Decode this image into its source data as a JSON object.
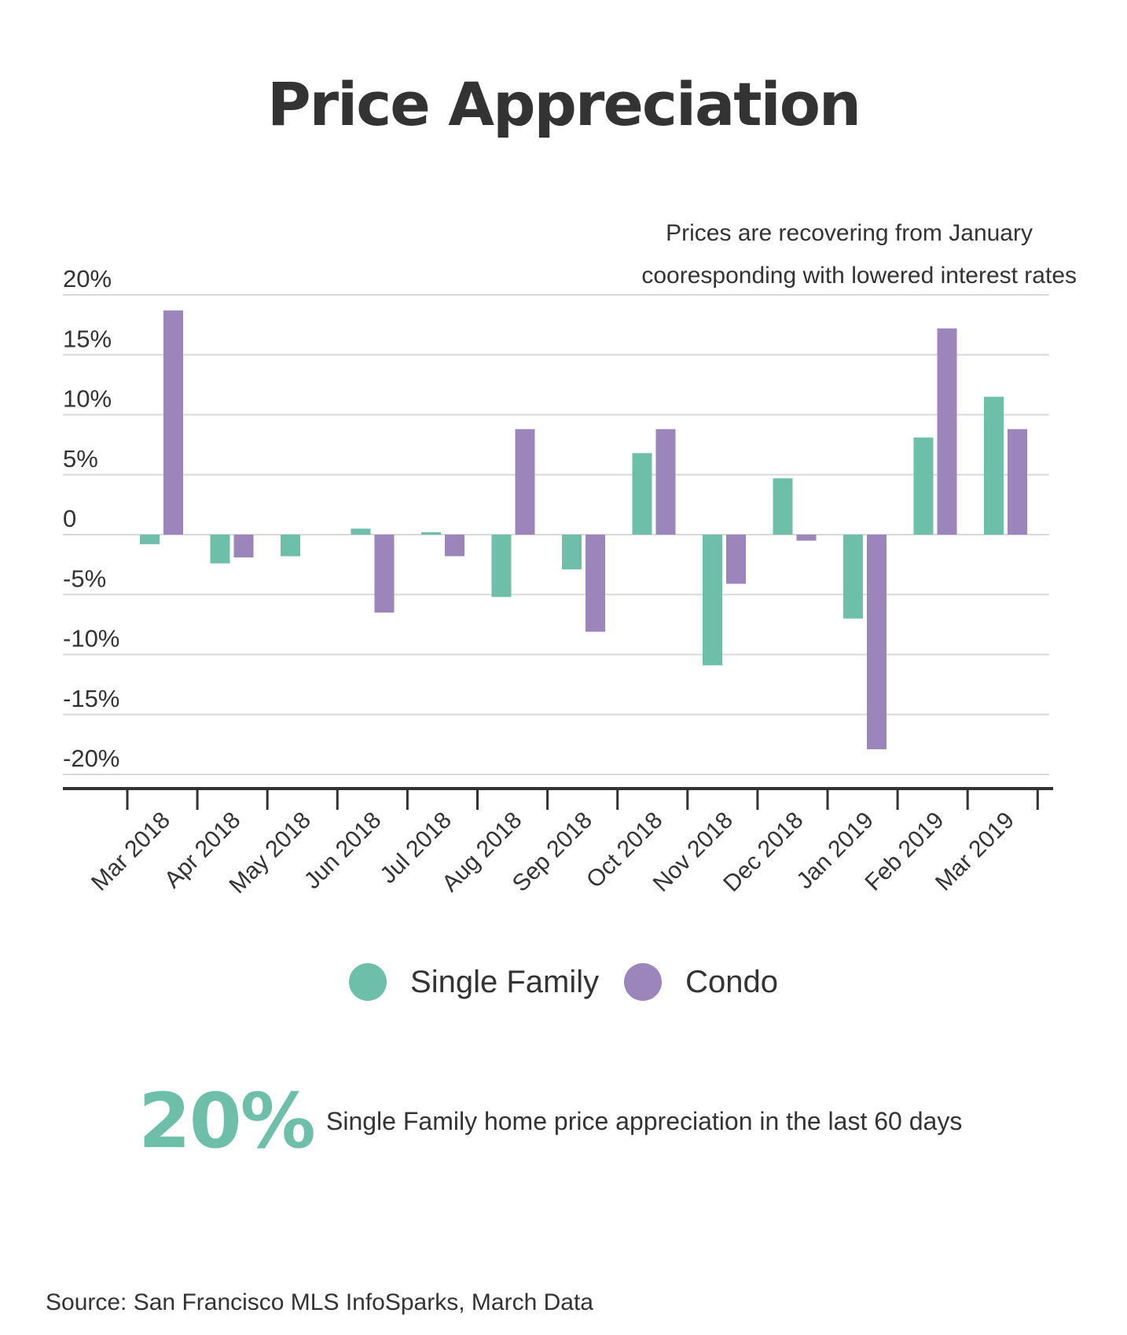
{
  "colors": {
    "single_family": "#6dbfa9",
    "condo": "#9b85bb",
    "grid": "#d9d9d9",
    "axis": "#333333"
  },
  "chart_data": {
    "type": "bar",
    "title": "Price Appreciation",
    "categories": [
      "Mar 2018",
      "Apr 2018",
      "May 2018",
      "Jun 2018",
      "Jul 2018",
      "Aug 2018",
      "Sep 2018",
      "Oct 2018",
      "Nov 2018",
      "Dec 2018",
      "Jan 2019",
      "Feb 2019",
      "Mar 2019"
    ],
    "series": [
      {
        "name": "Single Family",
        "values": [
          -0.8,
          -2.4,
          -1.8,
          0.5,
          0.2,
          -5.2,
          -2.9,
          6.8,
          -10.9,
          4.7,
          -7.0,
          8.1,
          11.5
        ]
      },
      {
        "name": "Condo",
        "values": [
          18.7,
          -1.9,
          0,
          -6.5,
          -1.8,
          8.8,
          -8.1,
          8.8,
          -4.1,
          -0.5,
          -17.9,
          17.2,
          8.8
        ]
      }
    ],
    "yticks": [
      "20%",
      "15%",
      "10%",
      "5%",
      "0",
      "-5%",
      "-10%",
      "-15%",
      "-20%"
    ],
    "ylim": [
      -20,
      20
    ],
    "grid": true,
    "legend_position": "bottom",
    "annotation": [
      "Prices are recovering from January",
      "cooresponding with lowered interest rates"
    ]
  },
  "callout": {
    "value": "20%",
    "text": "Single Family home price appreciation in the last 60 days"
  },
  "source": "Source:  San Francisco MLS InfoSparks, March Data"
}
